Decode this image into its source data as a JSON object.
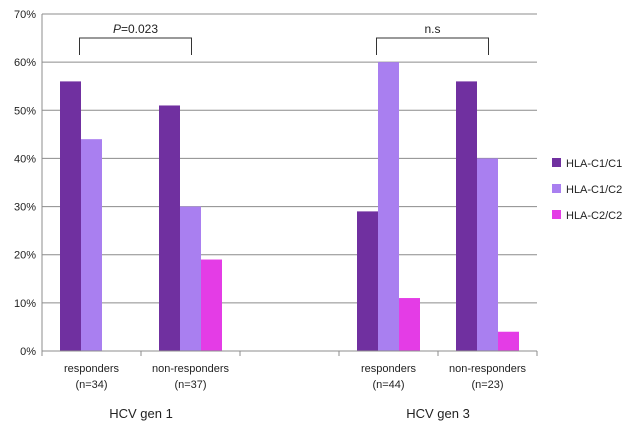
{
  "chart_data": {
    "type": "bar",
    "ylim": [
      0,
      70
    ],
    "yticks": [
      0,
      10,
      20,
      30,
      40,
      50,
      60,
      70
    ],
    "ytick_suffix": "%",
    "grid": true,
    "legend_position": "right",
    "categories": [
      {
        "line1": "responders",
        "line2": "(n=34)"
      },
      {
        "line1": "non-responders",
        "line2": "(n=37)"
      },
      {
        "line1": "",
        "line2": ""
      },
      {
        "line1": "responders",
        "line2": "(n=44)"
      },
      {
        "line1": "non-responders",
        "line2": "(n=23)"
      }
    ],
    "groups": [
      {
        "label": "HCV gen 1"
      },
      {
        "label": "HCV gen 3"
      }
    ],
    "series": [
      {
        "name": "HLA-C1/C1",
        "color": "#7030a0",
        "values": [
          56,
          51,
          null,
          29,
          56
        ]
      },
      {
        "name": "HLA-C1/C2",
        "color": "#a97ff0",
        "values": [
          44,
          30,
          null,
          60,
          40
        ]
      },
      {
        "name": "HLA-C2/C2",
        "color": "#e43ce6",
        "values": [
          0,
          19,
          null,
          11,
          4
        ]
      }
    ],
    "annotations": [
      {
        "italic": "P",
        "rest": "=0.023"
      },
      {
        "italic": "",
        "rest": "n.s"
      }
    ]
  }
}
